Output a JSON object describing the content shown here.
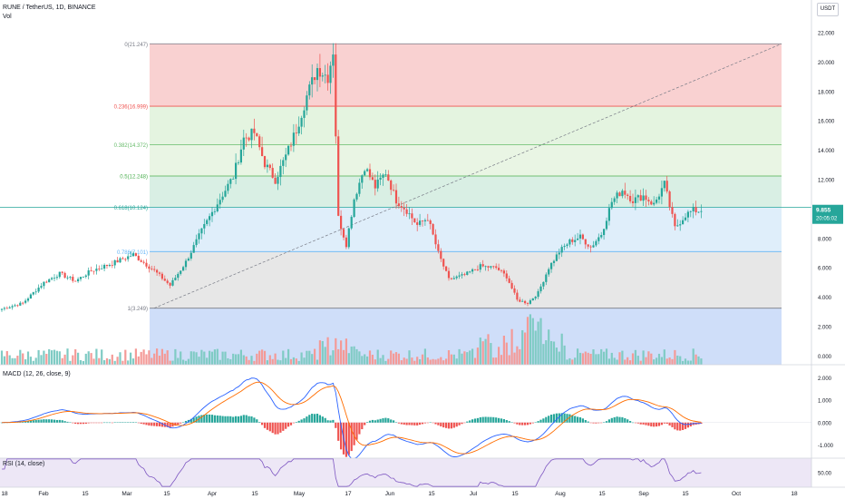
{
  "header": {
    "symbol": "RUNE / TetherUS, 1D, BINANCE",
    "vol_label": "Vol",
    "currency_button": "USDT"
  },
  "price_badge": {
    "value": "9.855",
    "countdown": "20:05:02",
    "color": "#26a69a"
  },
  "colors": {
    "up": "#26a69a",
    "down": "#ef5350",
    "vol_up": "#7fcbc4",
    "vol_down": "#f49a97",
    "macd": "#2962ff",
    "signal": "#ff6d00",
    "rsi": "#7e57c2"
  },
  "x_axis": {
    "ticks": [
      "18",
      "Feb",
      "15",
      "Mar",
      "15",
      "Apr",
      "15",
      "May",
      "17",
      "Jun",
      "15",
      "Jul",
      "15",
      "Aug",
      "15",
      "Sep",
      "15",
      "Oct",
      "18"
    ]
  },
  "chart_data": [
    {
      "type": "candlestick",
      "title": "RUNE / TetherUS, 1D, BINANCE",
      "ylim": [
        -0.6,
        22.5
      ],
      "y_ticks": [
        "22.000",
        "20.000",
        "18.000",
        "16.000",
        "14.000",
        "12.000",
        "10.000",
        "8.000",
        "6.000",
        "4.000",
        "2.000",
        "0.000"
      ],
      "fib_levels": [
        {
          "label": "0(21.247)",
          "value": 21.247,
          "line": "#787b86",
          "fill": "#f8c9c9"
        },
        {
          "label": "0.236(16.999)",
          "value": 16.999,
          "line": "#ef5350",
          "fill": "#dff2da"
        },
        {
          "label": "0.382(14.372)",
          "value": 14.372,
          "line": "#66bb6a",
          "fill": "#e5f3df"
        },
        {
          "label": "0.5(12.248)",
          "value": 12.248,
          "line": "#4caf50",
          "fill": "#d2ecdf"
        },
        {
          "label": "0.618(10.124)",
          "value": 10.124,
          "line": "#26a69a",
          "fill": "#d9ebf9"
        },
        {
          "label": "0.786(7.101)",
          "value": 7.101,
          "line": "#64b5f6",
          "fill": "#e3e3e3"
        },
        {
          "label": "1(3.249)",
          "value": 3.249,
          "line": "#787b86",
          "fill": "#c7d8f8"
        }
      ],
      "price_series_anchors": [
        [
          0,
          3.2
        ],
        [
          8,
          3.6
        ],
        [
          16,
          5.0
        ],
        [
          22,
          5.6
        ],
        [
          28,
          5.1
        ],
        [
          34,
          5.8
        ],
        [
          42,
          6.3
        ],
        [
          50,
          6.9
        ],
        [
          58,
          5.8
        ],
        [
          64,
          4.8
        ],
        [
          70,
          6.4
        ],
        [
          76,
          8.5
        ],
        [
          82,
          10.4
        ],
        [
          88,
          12.2
        ],
        [
          92,
          14.8
        ],
        [
          96,
          15.2
        ],
        [
          100,
          13.1
        ],
        [
          104,
          12.0
        ],
        [
          108,
          13.6
        ],
        [
          112,
          15.4
        ],
        [
          116,
          17.7
        ],
        [
          120,
          19.6
        ],
        [
          124,
          19.0
        ],
        [
          126,
          20.8
        ],
        [
          128,
          9.4
        ],
        [
          131,
          7.6
        ],
        [
          134,
          10.7
        ],
        [
          138,
          12.9
        ],
        [
          142,
          11.5
        ],
        [
          146,
          12.5
        ],
        [
          150,
          10.6
        ],
        [
          154,
          9.9
        ],
        [
          158,
          8.9
        ],
        [
          162,
          9.4
        ],
        [
          166,
          7.0
        ],
        [
          170,
          5.2
        ],
        [
          176,
          5.5
        ],
        [
          182,
          6.1
        ],
        [
          188,
          6.0
        ],
        [
          192,
          5.4
        ],
        [
          196,
          3.8
        ],
        [
          200,
          3.6
        ],
        [
          204,
          4.3
        ],
        [
          208,
          6.0
        ],
        [
          212,
          7.1
        ],
        [
          216,
          7.8
        ],
        [
          220,
          8.1
        ],
        [
          224,
          7.4
        ],
        [
          228,
          8.3
        ],
        [
          232,
          10.5
        ],
        [
          236,
          11.3
        ],
        [
          240,
          10.6
        ],
        [
          244,
          10.9
        ],
        [
          248,
          10.3
        ],
        [
          252,
          11.7
        ],
        [
          256,
          8.7
        ],
        [
          260,
          9.6
        ],
        [
          263,
          9.9
        ],
        [
          266,
          9.86
        ]
      ]
    },
    {
      "type": "bar",
      "name": "Vol",
      "description_level": "volume bars under price pane, scaled to pane bottom",
      "scale_max": 1.0
    },
    {
      "type": "line",
      "title": "MACD (12, 26, close, 9)",
      "ylim": [
        -1.6,
        2.6
      ],
      "y_ticks": [
        "2.000",
        "1.000",
        "0.000",
        "-1.000"
      ],
      "series": [
        {
          "name": "MACD"
        },
        {
          "name": "Signal"
        },
        {
          "name": "Histogram"
        }
      ]
    },
    {
      "type": "line",
      "title": "RSI (14, close)",
      "ylim": [
        30,
        70
      ],
      "y_ticks": [
        "50.00"
      ],
      "series": [
        {
          "name": "RSI"
        }
      ]
    }
  ]
}
